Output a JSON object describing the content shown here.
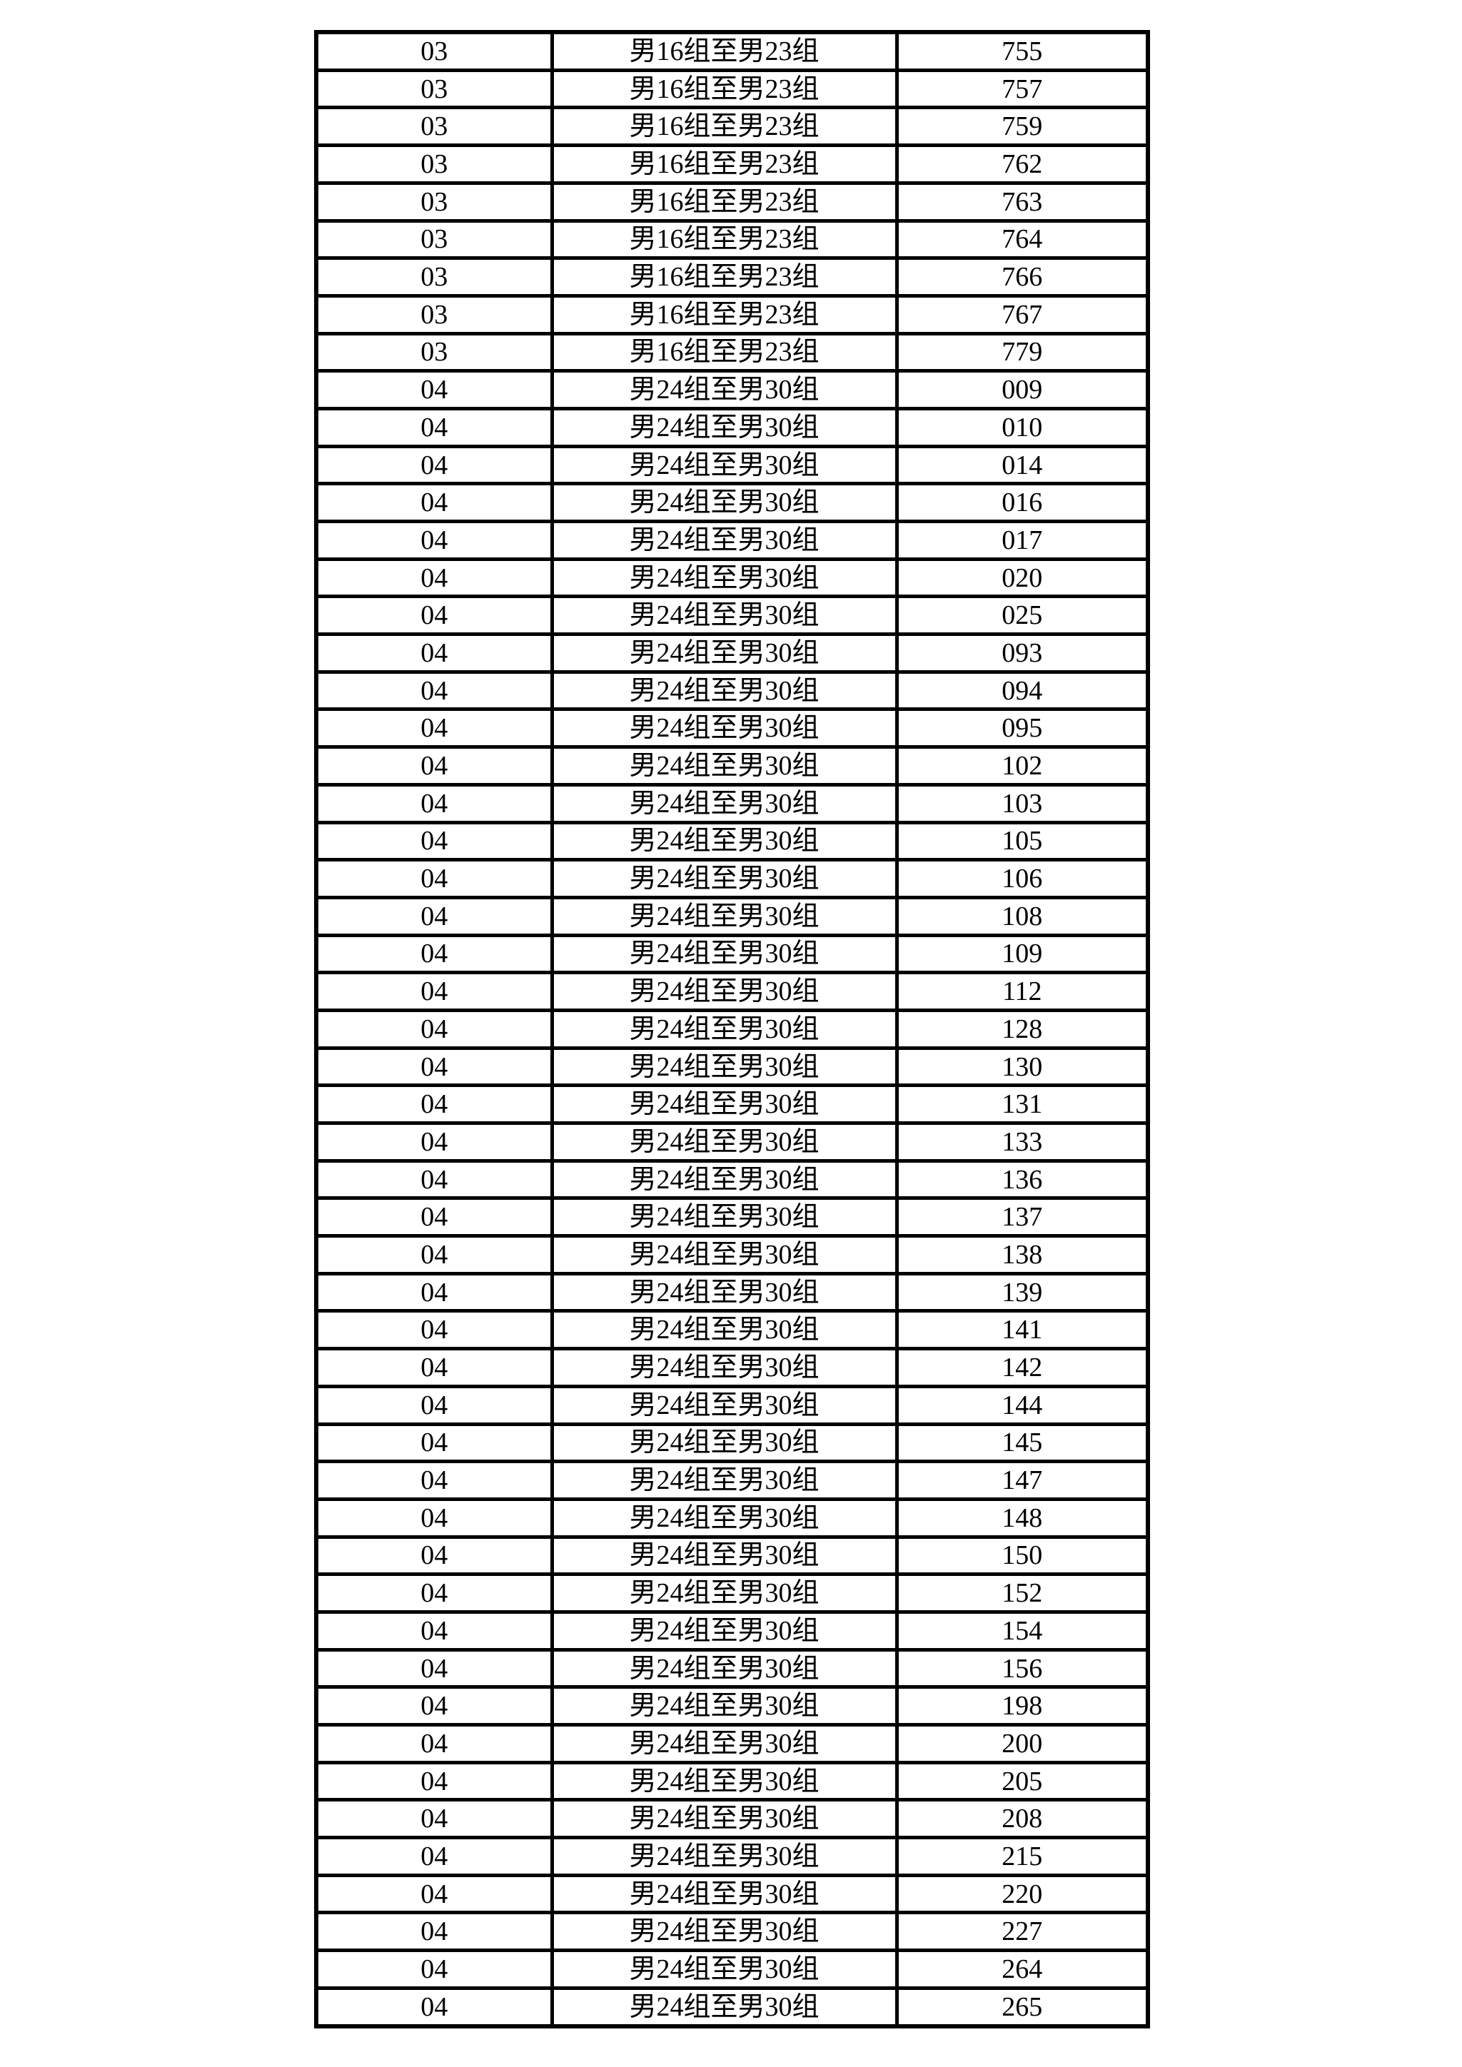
{
  "colors": {
    "background": "#ffffff",
    "border": "#000000",
    "text": "#000000"
  },
  "table": {
    "group_labels": {
      "code_03": "男16组至男23组",
      "code_04": "男24组至男30组"
    },
    "rows": [
      [
        "03",
        "男16组至男23组",
        "755"
      ],
      [
        "03",
        "男16组至男23组",
        "757"
      ],
      [
        "03",
        "男16组至男23组",
        "759"
      ],
      [
        "03",
        "男16组至男23组",
        "762"
      ],
      [
        "03",
        "男16组至男23组",
        "763"
      ],
      [
        "03",
        "男16组至男23组",
        "764"
      ],
      [
        "03",
        "男16组至男23组",
        "766"
      ],
      [
        "03",
        "男16组至男23组",
        "767"
      ],
      [
        "03",
        "男16组至男23组",
        "779"
      ],
      [
        "04",
        "男24组至男30组",
        "009"
      ],
      [
        "04",
        "男24组至男30组",
        "010"
      ],
      [
        "04",
        "男24组至男30组",
        "014"
      ],
      [
        "04",
        "男24组至男30组",
        "016"
      ],
      [
        "04",
        "男24组至男30组",
        "017"
      ],
      [
        "04",
        "男24组至男30组",
        "020"
      ],
      [
        "04",
        "男24组至男30组",
        "025"
      ],
      [
        "04",
        "男24组至男30组",
        "093"
      ],
      [
        "04",
        "男24组至男30组",
        "094"
      ],
      [
        "04",
        "男24组至男30组",
        "095"
      ],
      [
        "04",
        "男24组至男30组",
        "102"
      ],
      [
        "04",
        "男24组至男30组",
        "103"
      ],
      [
        "04",
        "男24组至男30组",
        "105"
      ],
      [
        "04",
        "男24组至男30组",
        "106"
      ],
      [
        "04",
        "男24组至男30组",
        "108"
      ],
      [
        "04",
        "男24组至男30组",
        "109"
      ],
      [
        "04",
        "男24组至男30组",
        "112"
      ],
      [
        "04",
        "男24组至男30组",
        "128"
      ],
      [
        "04",
        "男24组至男30组",
        "130"
      ],
      [
        "04",
        "男24组至男30组",
        "131"
      ],
      [
        "04",
        "男24组至男30组",
        "133"
      ],
      [
        "04",
        "男24组至男30组",
        "136"
      ],
      [
        "04",
        "男24组至男30组",
        "137"
      ],
      [
        "04",
        "男24组至男30组",
        "138"
      ],
      [
        "04",
        "男24组至男30组",
        "139"
      ],
      [
        "04",
        "男24组至男30组",
        "141"
      ],
      [
        "04",
        "男24组至男30组",
        "142"
      ],
      [
        "04",
        "男24组至男30组",
        "144"
      ],
      [
        "04",
        "男24组至男30组",
        "145"
      ],
      [
        "04",
        "男24组至男30组",
        "147"
      ],
      [
        "04",
        "男24组至男30组",
        "148"
      ],
      [
        "04",
        "男24组至男30组",
        "150"
      ],
      [
        "04",
        "男24组至男30组",
        "152"
      ],
      [
        "04",
        "男24组至男30组",
        "154"
      ],
      [
        "04",
        "男24组至男30组",
        "156"
      ],
      [
        "04",
        "男24组至男30组",
        "198"
      ],
      [
        "04",
        "男24组至男30组",
        "200"
      ],
      [
        "04",
        "男24组至男30组",
        "205"
      ],
      [
        "04",
        "男24组至男30组",
        "208"
      ],
      [
        "04",
        "男24组至男30组",
        "215"
      ],
      [
        "04",
        "男24组至男30组",
        "220"
      ],
      [
        "04",
        "男24组至男30组",
        "227"
      ],
      [
        "04",
        "男24组至男30组",
        "264"
      ],
      [
        "04",
        "男24组至男30组",
        "265"
      ]
    ]
  }
}
